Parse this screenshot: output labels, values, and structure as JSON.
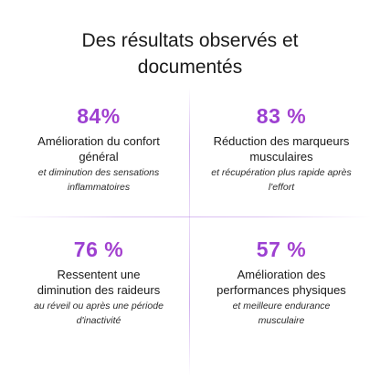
{
  "title": {
    "line1": "Des résultats observés et",
    "line2": "documentés"
  },
  "stats": [
    {
      "value": "84%",
      "label_lines": [
        "Amélioration du confort",
        "général"
      ],
      "detail_lines": [
        "et diminution des sensations",
        "inflammatoires"
      ]
    },
    {
      "value": "83 %",
      "label_lines": [
        "Réduction des marqueurs",
        "musculaires"
      ],
      "detail_lines": [
        "et récupération plus rapide après",
        "l'effort"
      ]
    },
    {
      "value": "76 %",
      "label_lines": [
        "Ressentent une",
        "diminution des raideurs"
      ],
      "detail_lines": [
        "au réveil ou après une période",
        "d'inactivité"
      ]
    },
    {
      "value": "57 %",
      "label_lines": [
        "Amélioration des",
        "performances physiques"
      ],
      "detail_lines": [
        "et meilleure endurance",
        "musculaire"
      ]
    }
  ],
  "colors": {
    "accent_start": "#8a3fd8",
    "accent_end": "#b440c8",
    "divider": "#aa6ee1"
  }
}
